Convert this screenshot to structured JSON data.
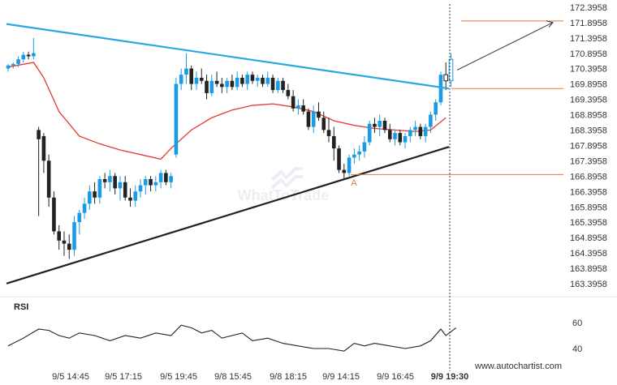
{
  "chart_data": {
    "type": "candlestick",
    "y_ticks": [
      "172.3958",
      "171.8958",
      "171.3958",
      "170.8958",
      "170.3958",
      "169.8958",
      "169.3958",
      "168.8958",
      "168.3958",
      "167.8958",
      "167.3958",
      "166.8958",
      "166.3958",
      "165.8958",
      "165.3958",
      "164.8958",
      "164.3958",
      "163.8958",
      "163.3958"
    ],
    "x_ticks": [
      "9/5 14:45",
      "9/5 17:15",
      "9/5 19:45",
      "9/8 15:45",
      "9/8 18:15",
      "9/9 14:15",
      "9/9 16:45",
      "9/9 19:30"
    ],
    "ylim": [
      163.0,
      172.5
    ],
    "bullish_color": "#1a9be6",
    "bearish_color": "#222222",
    "candles": [
      [
        170.4,
        170.55,
        170.3,
        170.5
      ],
      [
        170.5,
        170.6,
        170.4,
        170.55
      ],
      [
        170.55,
        170.8,
        170.45,
        170.7
      ],
      [
        170.7,
        170.95,
        170.6,
        170.85
      ],
      [
        170.85,
        170.95,
        170.7,
        170.8
      ],
      [
        170.8,
        171.4,
        170.7,
        170.9
      ],
      [
        168.4,
        168.5,
        165.6,
        168.1
      ],
      [
        168.2,
        168.3,
        167.0,
        167.4
      ],
      [
        167.4,
        167.6,
        165.9,
        166.2
      ],
      [
        166.2,
        166.4,
        165.0,
        165.1
      ],
      [
        165.1,
        165.3,
        164.5,
        164.8
      ],
      [
        164.8,
        165.1,
        164.3,
        164.7
      ],
      [
        164.7,
        165.0,
        164.2,
        164.5
      ],
      [
        164.5,
        165.6,
        164.3,
        165.4
      ],
      [
        165.4,
        165.8,
        165.0,
        165.7
      ],
      [
        165.7,
        166.2,
        165.5,
        166.0
      ],
      [
        166.0,
        166.6,
        165.8,
        166.4
      ],
      [
        166.4,
        166.7,
        166.0,
        166.2
      ],
      [
        166.2,
        166.9,
        166.0,
        166.8
      ],
      [
        166.8,
        167.0,
        166.5,
        166.7
      ],
      [
        166.7,
        167.1,
        166.4,
        166.9
      ],
      [
        166.9,
        167.0,
        166.3,
        166.5
      ],
      [
        166.5,
        166.9,
        166.1,
        166.7
      ],
      [
        166.7,
        166.9,
        166.1,
        166.2
      ],
      [
        166.2,
        166.5,
        165.9,
        166.1
      ],
      [
        166.1,
        166.6,
        165.9,
        166.4
      ],
      [
        166.4,
        166.8,
        166.2,
        166.6
      ],
      [
        166.6,
        166.9,
        166.3,
        166.8
      ],
      [
        166.8,
        166.9,
        166.4,
        166.6
      ],
      [
        166.6,
        166.9,
        166.4,
        166.7
      ],
      [
        166.7,
        167.1,
        166.5,
        167.0
      ],
      [
        167.0,
        167.1,
        166.6,
        166.7
      ],
      [
        166.7,
        167.0,
        166.5,
        166.9
      ],
      [
        167.6,
        170.1,
        167.5,
        169.9
      ],
      [
        169.9,
        170.4,
        169.7,
        170.2
      ],
      [
        170.2,
        170.9,
        169.9,
        170.4
      ],
      [
        170.4,
        170.5,
        169.7,
        169.9
      ],
      [
        169.9,
        170.3,
        169.7,
        170.1
      ],
      [
        170.1,
        170.4,
        169.9,
        170.0
      ],
      [
        170.0,
        170.2,
        169.4,
        169.6
      ],
      [
        169.6,
        170.2,
        169.5,
        170.0
      ],
      [
        170.0,
        170.3,
        169.8,
        169.9
      ],
      [
        169.9,
        170.1,
        169.6,
        169.8
      ],
      [
        169.8,
        170.1,
        169.6,
        170.0
      ],
      [
        170.0,
        170.2,
        169.7,
        169.8
      ],
      [
        169.8,
        170.3,
        169.7,
        170.1
      ],
      [
        170.1,
        170.2,
        169.8,
        169.9
      ],
      [
        169.9,
        170.3,
        169.7,
        170.2
      ],
      [
        170.2,
        170.3,
        169.9,
        170.0
      ],
      [
        170.0,
        170.2,
        169.8,
        170.1
      ],
      [
        170.1,
        170.2,
        169.8,
        169.9
      ],
      [
        169.9,
        170.3,
        169.8,
        170.1
      ],
      [
        170.1,
        170.2,
        169.6,
        169.7
      ],
      [
        169.7,
        170.1,
        169.6,
        170.0
      ],
      [
        170.0,
        170.1,
        169.6,
        169.7
      ],
      [
        169.7,
        169.9,
        169.4,
        169.5
      ],
      [
        169.5,
        169.7,
        169.0,
        169.1
      ],
      [
        169.1,
        169.4,
        168.9,
        169.2
      ],
      [
        169.2,
        169.4,
        168.9,
        169.0
      ],
      [
        169.0,
        169.1,
        168.4,
        168.5
      ],
      [
        168.5,
        169.2,
        168.3,
        169.0
      ],
      [
        169.0,
        169.3,
        168.7,
        168.8
      ],
      [
        168.8,
        169.0,
        168.3,
        168.4
      ],
      [
        168.4,
        168.8,
        168.0,
        168.2
      ],
      [
        168.2,
        168.5,
        167.4,
        167.8
      ],
      [
        167.8,
        167.9,
        167.0,
        167.1
      ],
      [
        167.1,
        167.3,
        166.8,
        167.0
      ],
      [
        167.0,
        167.6,
        166.9,
        167.5
      ],
      [
        167.5,
        167.8,
        167.3,
        167.6
      ],
      [
        167.6,
        167.9,
        167.4,
        167.7
      ],
      [
        167.7,
        168.2,
        167.5,
        168.0
      ],
      [
        168.0,
        168.7,
        167.9,
        168.6
      ],
      [
        168.6,
        168.8,
        168.3,
        168.5
      ],
      [
        168.5,
        168.9,
        168.2,
        168.7
      ],
      [
        168.7,
        168.8,
        168.3,
        168.4
      ],
      [
        168.4,
        168.6,
        168.0,
        168.1
      ],
      [
        168.1,
        168.4,
        167.9,
        168.3
      ],
      [
        168.3,
        168.4,
        167.9,
        168.0
      ],
      [
        168.0,
        168.3,
        167.8,
        168.2
      ],
      [
        168.2,
        168.5,
        168.0,
        168.4
      ],
      [
        168.4,
        168.7,
        168.2,
        168.5
      ],
      [
        168.5,
        168.6,
        168.1,
        168.2
      ],
      [
        168.2,
        168.6,
        168.0,
        168.5
      ],
      [
        168.5,
        169.0,
        168.3,
        168.9
      ],
      [
        168.9,
        169.4,
        168.7,
        169.3
      ],
      [
        169.3,
        170.3,
        169.2,
        170.2
      ],
      [
        170.2,
        170.6,
        169.7,
        170.0
      ],
      [
        170.0,
        170.9,
        169.8,
        170.7
      ]
    ],
    "ma_line": [
      [
        0,
        170.45
      ],
      [
        5,
        170.6
      ],
      [
        7,
        170.1
      ],
      [
        10,
        169.0
      ],
      [
        14,
        168.2
      ],
      [
        18,
        167.95
      ],
      [
        22,
        167.75
      ],
      [
        26,
        167.6
      ],
      [
        30,
        167.45
      ],
      [
        32,
        167.8
      ],
      [
        36,
        168.4
      ],
      [
        40,
        168.8
      ],
      [
        44,
        169.05
      ],
      [
        48,
        169.2
      ],
      [
        52,
        169.25
      ],
      [
        56,
        169.15
      ],
      [
        60,
        169.0
      ],
      [
        64,
        168.7
      ],
      [
        68,
        168.55
      ],
      [
        72,
        168.45
      ],
      [
        76,
        168.4
      ],
      [
        80,
        168.35
      ],
      [
        83,
        168.4
      ],
      [
        86,
        168.8
      ]
    ],
    "rsi_line": [
      [
        0,
        42
      ],
      [
        3,
        48
      ],
      [
        6,
        55
      ],
      [
        8,
        54
      ],
      [
        10,
        50
      ],
      [
        12,
        48
      ],
      [
        14,
        52
      ],
      [
        17,
        50
      ],
      [
        20,
        46
      ],
      [
        23,
        50
      ],
      [
        26,
        48
      ],
      [
        29,
        52
      ],
      [
        32,
        50
      ],
      [
        34,
        58
      ],
      [
        36,
        56
      ],
      [
        38,
        52
      ],
      [
        40,
        54
      ],
      [
        42,
        48
      ],
      [
        44,
        50
      ],
      [
        46,
        52
      ],
      [
        48,
        46
      ],
      [
        51,
        48
      ],
      [
        54,
        44
      ],
      [
        57,
        42
      ],
      [
        60,
        40
      ],
      [
        63,
        40
      ],
      [
        66,
        38
      ],
      [
        68,
        44
      ],
      [
        70,
        42
      ],
      [
        72,
        44
      ],
      [
        75,
        42
      ],
      [
        78,
        40
      ],
      [
        81,
        42
      ],
      [
        83,
        46
      ],
      [
        85,
        55
      ],
      [
        86,
        50
      ],
      [
        88,
        56
      ]
    ],
    "resistance_line": [
      [
        165,
        171.85
      ],
      [
        172,
        169.75
      ]
    ],
    "support_line": [
      [
        230,
        163.25
      ],
      [
        172,
        167.85
      ]
    ],
    "horizontal_levels": {
      "upper": 171.95,
      "middle": 169.75,
      "lower": 166.95
    },
    "forecast_arrow": [
      [
        172,
        170.3
      ],
      [
        178,
        171.9
      ]
    ],
    "point_label": "A",
    "rsi_label": "RSI",
    "rsi_ticks": [
      "60",
      "40"
    ],
    "watermark": "WhatToTrade",
    "footer_text": "www.autochartist.com"
  }
}
